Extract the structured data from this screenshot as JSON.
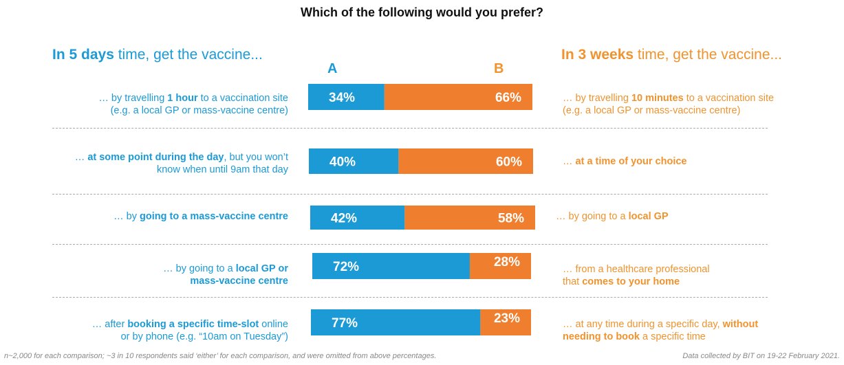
{
  "chart_data": {
    "type": "bar",
    "title": "Which of the following would you prefer?",
    "left_header": {
      "bold": "In 5 days",
      "rest": " time, get the vaccine..."
    },
    "right_header": {
      "bold": "In 3 weeks",
      "rest": " time, get the vaccine..."
    },
    "column_labels": [
      "A",
      "B"
    ],
    "colors": {
      "A": "#1b9ad6",
      "B": "#ef7f2e"
    },
    "rows": [
      {
        "a": 34,
        "b": 66,
        "a_label": "34%",
        "b_label": "66%",
        "left": [
          [
            "… by travelling ",
            ""
          ],
          [
            "1 hour",
            "b"
          ],
          [
            " to a vaccination site",
            ""
          ],
          [
            "\n",
            ""
          ],
          [
            "(e.g. a local GP or mass-vaccine centre)",
            ""
          ]
        ],
        "right": [
          [
            "… by travelling ",
            ""
          ],
          [
            "10 minutes",
            "b"
          ],
          [
            " to a vaccination site",
            ""
          ],
          [
            "\n",
            ""
          ],
          [
            "(e.g. a local GP or mass-vaccine centre)",
            ""
          ]
        ]
      },
      {
        "a": 40,
        "b": 60,
        "a_label": "40%",
        "b_label": "60%",
        "left": [
          [
            "… ",
            ""
          ],
          [
            "at some point during the day",
            "b"
          ],
          [
            ", but you won’t",
            ""
          ],
          [
            "\n",
            ""
          ],
          [
            "know when until 9am that day",
            ""
          ]
        ],
        "right": [
          [
            "… ",
            ""
          ],
          [
            "at a time of your choice",
            "b"
          ]
        ]
      },
      {
        "a": 42,
        "b": 58,
        "a_label": "42%",
        "b_label": "58%",
        "left": [
          [
            "… by ",
            ""
          ],
          [
            "going to a mass-vaccine centre",
            "b"
          ]
        ],
        "right": [
          [
            "… by going to a ",
            ""
          ],
          [
            "local GP",
            "b"
          ]
        ]
      },
      {
        "a": 72,
        "b": 28,
        "a_label": "72%",
        "b_label": "28%",
        "left": [
          [
            "… by going to a ",
            ""
          ],
          [
            "local GP or",
            "b"
          ],
          [
            "\n",
            ""
          ],
          [
            "mass-vaccine centre",
            "b"
          ]
        ],
        "right": [
          [
            "… from a healthcare professional",
            ""
          ],
          [
            "\n",
            ""
          ],
          [
            "that ",
            ""
          ],
          [
            "comes to your home",
            "b"
          ]
        ]
      },
      {
        "a": 77,
        "b": 23,
        "a_label": "77%",
        "b_label": "23%",
        "left": [
          [
            "… after ",
            ""
          ],
          [
            "booking a specific time-slot",
            "b"
          ],
          [
            " online",
            ""
          ],
          [
            "\n",
            ""
          ],
          [
            "or by phone (e.g. “10am on Tuesday”)",
            ""
          ]
        ],
        "right": [
          [
            "… at any time during a specific day, ",
            ""
          ],
          [
            "without",
            "b"
          ],
          [
            "\n",
            ""
          ],
          [
            "needing to book",
            "b"
          ],
          [
            " a specific time",
            ""
          ]
        ]
      }
    ],
    "footnote_left": "n~2,000 for each comparison; ~3 in 10 respondents said ‘either’ for each comparison, and were omitted from above percentages.",
    "footnote_right": "Data collected by BIT on 19-22 February 2021."
  }
}
